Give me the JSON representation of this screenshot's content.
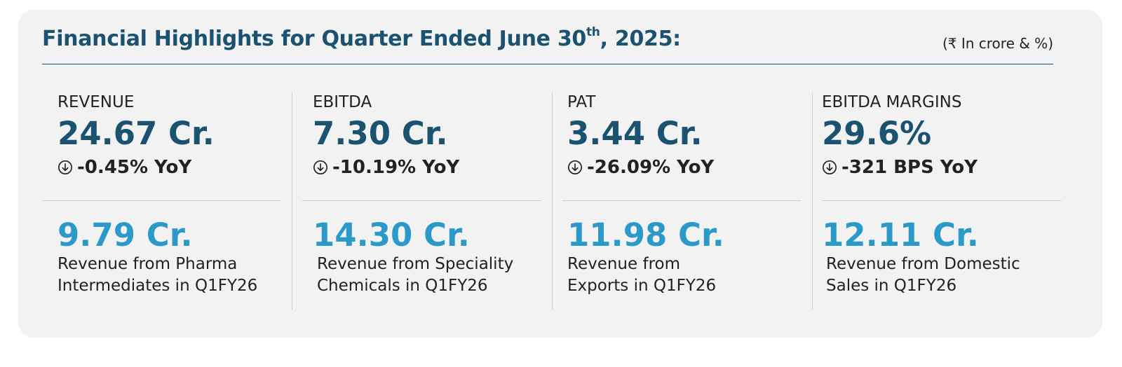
{
  "header": {
    "title_main": "Financial Highlights for Quarter Ended June 30",
    "title_sup": "th",
    "title_end": ", 2025:",
    "unit_note": "(₹ In crore & %)"
  },
  "metrics": [
    {
      "label": "REVENUE",
      "value": "24.67 Cr.",
      "change": "-0.45% YoY",
      "change_icon": "arrow-down-circle-icon"
    },
    {
      "label": "EBITDA",
      "value": "7.30 Cr.",
      "change": "-10.19% YoY",
      "change_icon": "arrow-down-circle-icon"
    },
    {
      "label": "PAT",
      "value": "3.44 Cr.",
      "change": "-26.09% YoY",
      "change_icon": "arrow-down-circle-icon"
    },
    {
      "label": "EBITDA MARGINS",
      "value": "29.6%",
      "change": "-321 BPS YoY",
      "change_icon": "arrow-down-circle-icon"
    }
  ],
  "sub_metrics": [
    {
      "value": "9.79 Cr.",
      "desc": "Revenue from Pharma Intermediates in Q1FY26"
    },
    {
      "value": "14.30 Cr.",
      "desc": "Revenue from Speciality Chemicals in Q1FY26"
    },
    {
      "value": "11.98 Cr.",
      "desc": "Revenue from Exports in Q1FY26"
    },
    {
      "value": "12.11 Cr.",
      "desc": "Revenue from Domestic Sales in Q1FY26"
    }
  ],
  "colors": {
    "primary": "#1a5270",
    "accent": "#2b9ac9",
    "card_bg": "#f2f2f2"
  }
}
